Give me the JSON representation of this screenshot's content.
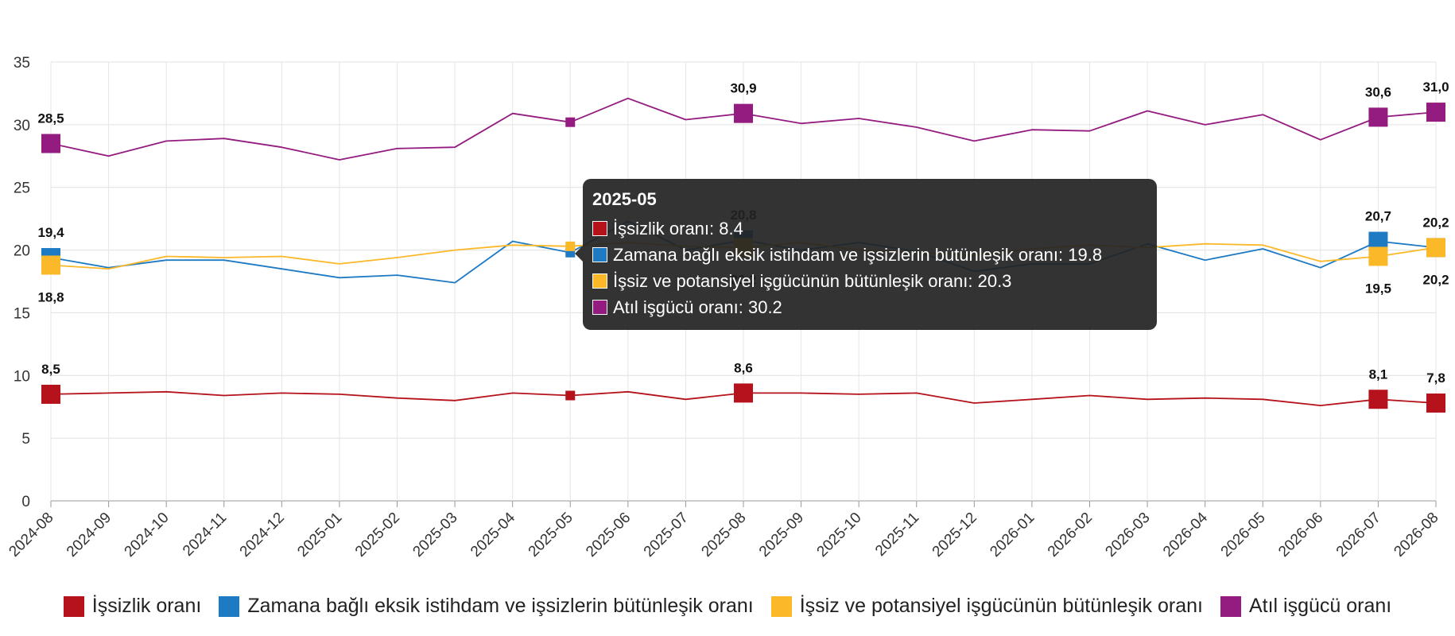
{
  "chart_data": {
    "type": "line",
    "categories": [
      "2024-08",
      "2024-09",
      "2024-10",
      "2024-11",
      "2024-12",
      "2025-01",
      "2025-02",
      "2025-03",
      "2025-04",
      "2025-05",
      "2025-06",
      "2025-07",
      "2025-08",
      "2025-09",
      "2025-10",
      "2025-11",
      "2025-12",
      "2026-01",
      "2026-02",
      "2026-03",
      "2026-04",
      "2026-05",
      "2026-06",
      "2026-07",
      "2026-08"
    ],
    "ylim": [
      0,
      35
    ],
    "yticks": [
      "0",
      "5",
      "10",
      "15",
      "20",
      "25",
      "30",
      "35"
    ],
    "grid": true,
    "legend_position": "bottom",
    "series": [
      {
        "name": "İşsizlik oranı",
        "color": "#b5121b",
        "values": [
          8.5,
          8.6,
          8.7,
          8.4,
          8.6,
          8.5,
          8.2,
          8.0,
          8.6,
          8.4,
          8.7,
          8.1,
          8.6,
          8.6,
          8.5,
          8.6,
          7.8,
          8.1,
          8.4,
          8.1,
          8.2,
          8.1,
          7.6,
          8.1,
          7.8
        ]
      },
      {
        "name": "Zamana bağlı eksik istihdam ve işsizlerin bütünleşik oranı",
        "color": "#1f7ac4",
        "values": [
          19.4,
          18.6,
          19.2,
          19.2,
          18.5,
          17.8,
          18.0,
          17.4,
          20.7,
          19.8,
          22.3,
          20.0,
          20.8,
          20.0,
          20.6,
          19.9,
          18.3,
          18.9,
          18.9,
          20.5,
          19.2,
          20.1,
          18.6,
          20.7,
          20.2
        ]
      },
      {
        "name": "İşsiz ve potansiyel işgücünün bütünleşik oranı",
        "color": "#fbb829",
        "values": [
          18.8,
          18.5,
          19.5,
          19.4,
          19.5,
          18.9,
          19.4,
          20.0,
          20.4,
          20.3,
          20.6,
          20.3,
          20.2,
          20.6,
          20.0,
          19.8,
          19.6,
          20.1,
          20.4,
          20.2,
          20.5,
          20.4,
          19.1,
          19.5,
          20.2
        ]
      },
      {
        "name": "Atıl işgücü oranı",
        "color": "#941c80",
        "values": [
          28.5,
          27.5,
          28.7,
          28.9,
          28.2,
          27.2,
          28.1,
          28.2,
          30.9,
          30.2,
          32.1,
          30.4,
          30.9,
          30.1,
          30.5,
          29.8,
          28.7,
          29.6,
          29.5,
          31.1,
          30.0,
          30.8,
          28.8,
          30.6,
          31.0
        ]
      }
    ],
    "annotations": [
      {
        "series": 0,
        "index": 0,
        "text": "8,5",
        "pos": "above"
      },
      {
        "series": 0,
        "index": 12,
        "text": "8,6",
        "pos": "above"
      },
      {
        "series": 0,
        "index": 23,
        "text": "8,1",
        "pos": "above"
      },
      {
        "series": 0,
        "index": 24,
        "text": "7,8",
        "pos": "above"
      },
      {
        "series": 1,
        "index": 0,
        "text": "19,4",
        "pos": "above"
      },
      {
        "series": 1,
        "index": 12,
        "text": "20,8",
        "pos": "above"
      },
      {
        "series": 1,
        "index": 23,
        "text": "20,7",
        "pos": "above"
      },
      {
        "series": 1,
        "index": 24,
        "text": "20,2",
        "pos": "above"
      },
      {
        "series": 2,
        "index": 0,
        "text": "18,8",
        "pos": "below"
      },
      {
        "series": 2,
        "index": 12,
        "text": "20,2",
        "pos": "below"
      },
      {
        "series": 2,
        "index": 23,
        "text": "19,5",
        "pos": "below"
      },
      {
        "series": 2,
        "index": 24,
        "text": "20,2",
        "pos": "below"
      },
      {
        "series": 3,
        "index": 0,
        "text": "28,5",
        "pos": "above"
      },
      {
        "series": 3,
        "index": 12,
        "text": "30,9",
        "pos": "above"
      },
      {
        "series": 3,
        "index": 23,
        "text": "30,6",
        "pos": "above"
      },
      {
        "series": 3,
        "index": 24,
        "text": "31,0",
        "pos": "above"
      }
    ],
    "markers_large_at": [
      0,
      12,
      23,
      24
    ],
    "hover_index": 9
  },
  "tooltip": {
    "title": "2025-05",
    "rows": [
      {
        "text": "İşsizlik oranı: 8.4",
        "color": "#b5121b"
      },
      {
        "text": "Zamana bağlı eksik istihdam ve işsizlerin bütünleşik oranı: 19.8",
        "color": "#1f7ac4"
      },
      {
        "text": "İşsiz ve potansiyel işgücünün bütünleşik oranı: 20.3",
        "color": "#fbb829"
      },
      {
        "text": "Atıl işgücü oranı: 30.2",
        "color": "#941c80"
      }
    ]
  }
}
